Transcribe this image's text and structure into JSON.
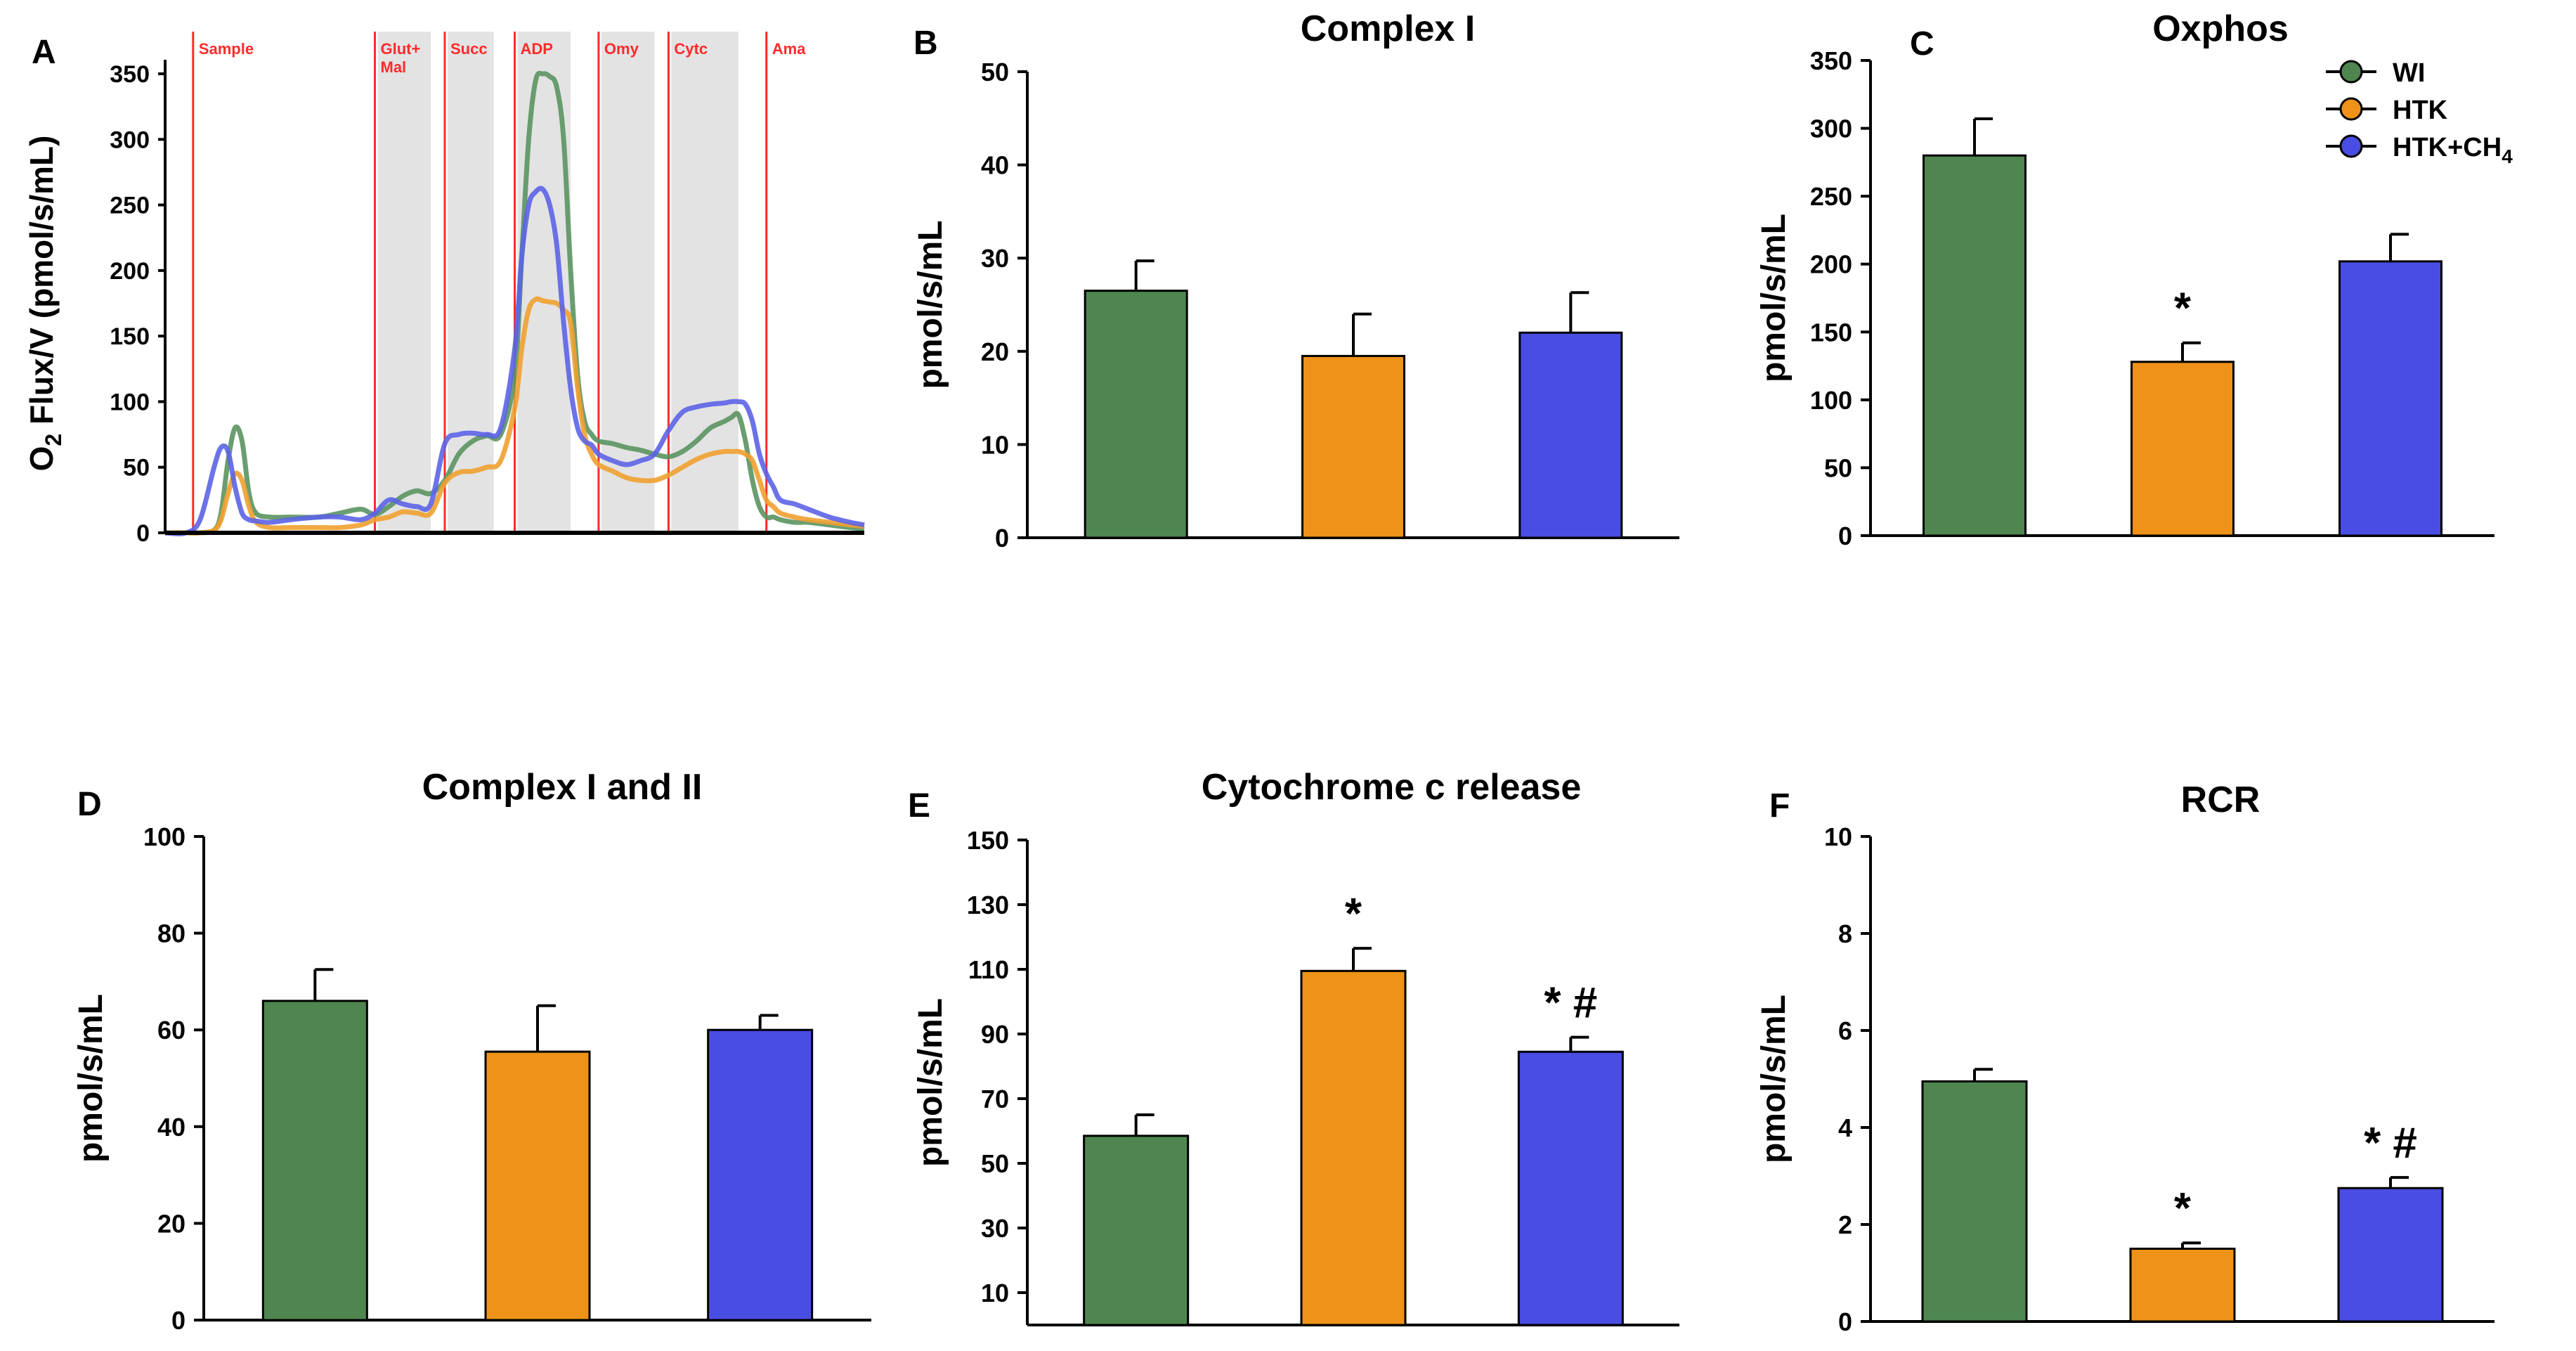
{
  "colors": {
    "wi": "#4f8650",
    "htk": "#ee9219",
    "htk_ch4": "#4a4de3",
    "axis": "#000000",
    "marker": "#ff2b2b",
    "shade": "#e3e3e3",
    "trace_green": "#5a9460",
    "trace_orange": "#f0a030",
    "trace_blue": "#5c63e6"
  },
  "legend": {
    "items": [
      "WI",
      "HTK",
      "HTK+CH4"
    ],
    "ch4_base": "HTK+CH",
    "ch4_sub": "4"
  },
  "chart_data": [
    {
      "id": "A",
      "type": "line",
      "letter": "A",
      "ylabel_prefix": "O",
      "ylabel_sub": "2",
      "ylabel_rest": " Flux/V (pmol/s/mL)",
      "ylim": [
        0,
        350
      ],
      "yticks": [
        0,
        50,
        100,
        150,
        200,
        250,
        300,
        350
      ],
      "xlim": [
        0,
        100
      ],
      "events": [
        {
          "label": "Sample",
          "x": 4,
          "shade_end": null
        },
        {
          "label": "Glut+",
          "label2": "Mal",
          "x": 30,
          "shade_end": 38
        },
        {
          "label": "Succ",
          "x": 40,
          "shade_end": 47
        },
        {
          "label": "ADP",
          "x": 50,
          "shade_end": 58
        },
        {
          "label": "Omy",
          "x": 62,
          "shade_end": 70
        },
        {
          "label": "Cytc",
          "x": 72,
          "shade_end": 82
        },
        {
          "label": "Ama",
          "x": 86,
          "shade_end": null
        }
      ],
      "series": [
        {
          "name": "WI",
          "color_key": "trace_green",
          "x": [
            0,
            3,
            5,
            7,
            8,
            9,
            10,
            11,
            12,
            13,
            15,
            18,
            22,
            25,
            28,
            30,
            32,
            34,
            36,
            38,
            40,
            42,
            44,
            46,
            48,
            50,
            51,
            52,
            53,
            54,
            55,
            56,
            57,
            58,
            59,
            60,
            61,
            62,
            64,
            66,
            68,
            70,
            72,
            74,
            76,
            78,
            80,
            81,
            82,
            83,
            84,
            85,
            86,
            87,
            88,
            90,
            92,
            95,
            98,
            100
          ],
          "y": [
            0,
            0,
            0,
            2,
            15,
            55,
            80,
            70,
            30,
            15,
            12,
            12,
            12,
            15,
            18,
            14,
            20,
            28,
            32,
            30,
            40,
            60,
            70,
            74,
            75,
            120,
            210,
            300,
            345,
            350,
            348,
            340,
            300,
            200,
            120,
            85,
            75,
            70,
            68,
            65,
            63,
            60,
            58,
            62,
            70,
            80,
            85,
            88,
            90,
            70,
            40,
            20,
            12,
            12,
            10,
            8,
            8,
            6,
            4,
            3
          ]
        },
        {
          "name": "HTK",
          "color_key": "trace_orange",
          "x": [
            0,
            3,
            5,
            7,
            8,
            9,
            10,
            11,
            12,
            13,
            15,
            18,
            22,
            25,
            28,
            30,
            32,
            34,
            36,
            38,
            40,
            42,
            44,
            46,
            48,
            50,
            51,
            52,
            53,
            54,
            55,
            56,
            57,
            58,
            59,
            60,
            61,
            62,
            64,
            66,
            68,
            70,
            72,
            74,
            76,
            78,
            80,
            81,
            82,
            83,
            84,
            85,
            86,
            87,
            88,
            90,
            92,
            95,
            98,
            100
          ],
          "y": [
            0,
            0,
            0,
            2,
            10,
            30,
            45,
            40,
            20,
            8,
            4,
            4,
            4,
            4,
            6,
            10,
            12,
            16,
            15,
            15,
            38,
            46,
            47,
            50,
            55,
            95,
            140,
            170,
            178,
            177,
            176,
            175,
            170,
            160,
            110,
            75,
            60,
            52,
            47,
            42,
            40,
            40,
            44,
            50,
            56,
            60,
            62,
            62,
            62,
            60,
            55,
            40,
            25,
            20,
            15,
            12,
            10,
            8,
            6,
            5
          ]
        },
        {
          "name": "HTK+CH4",
          "color_key": "trace_blue",
          "x": [
            0,
            3,
            5,
            7,
            8,
            9,
            10,
            11,
            12,
            13,
            15,
            18,
            22,
            25,
            28,
            30,
            32,
            34,
            36,
            38,
            40,
            42,
            44,
            46,
            48,
            50,
            51,
            52,
            53,
            54,
            55,
            56,
            57,
            58,
            59,
            60,
            61,
            62,
            64,
            66,
            68,
            70,
            72,
            74,
            76,
            78,
            80,
            81,
            82,
            83,
            84,
            85,
            86,
            87,
            88,
            90,
            92,
            95,
            98,
            100
          ],
          "y": [
            0,
            0,
            10,
            50,
            65,
            62,
            35,
            15,
            10,
            9,
            8,
            10,
            12,
            12,
            10,
            15,
            25,
            22,
            20,
            22,
            68,
            75,
            76,
            75,
            80,
            140,
            210,
            250,
            260,
            262,
            250,
            220,
            160,
            110,
            80,
            70,
            67,
            60,
            55,
            52,
            55,
            60,
            78,
            92,
            96,
            98,
            99,
            100,
            100,
            98,
            85,
            60,
            45,
            35,
            25,
            22,
            18,
            12,
            8,
            6
          ]
        }
      ]
    },
    {
      "id": "B",
      "type": "bar",
      "letter": "B",
      "title": "Complex I",
      "ylabel": "pmol/s/mL",
      "ylim": [
        0,
        50
      ],
      "yticks": [
        0,
        10,
        20,
        30,
        40,
        50
      ],
      "categories": [
        "WI",
        "HTK",
        "HTK+CH4"
      ],
      "values": [
        26.5,
        19.5,
        22
      ],
      "errors": [
        3.2,
        4.5,
        4.3
      ],
      "annotations": [
        "",
        "",
        ""
      ]
    },
    {
      "id": "C",
      "type": "bar",
      "letter": "C",
      "title": "Oxphos",
      "ylabel": "pmol/s/mL",
      "ylim": [
        0,
        350
      ],
      "yticks": [
        0,
        50,
        100,
        150,
        200,
        250,
        300,
        350
      ],
      "categories": [
        "WI",
        "HTK",
        "HTK+CH4"
      ],
      "values": [
        280,
        128,
        202
      ],
      "errors": [
        27,
        14,
        20
      ],
      "annotations": [
        "",
        "*",
        ""
      ],
      "legend": true
    },
    {
      "id": "D",
      "type": "bar",
      "letter": "D",
      "title": "Complex I and II",
      "ylabel": "pmol/s/mL",
      "ylim": [
        0,
        100
      ],
      "yticks": [
        0,
        20,
        40,
        60,
        80,
        100
      ],
      "categories": [
        "WI",
        "HTK",
        "HTK+CH4"
      ],
      "values": [
        66,
        55.5,
        60
      ],
      "errors": [
        6.5,
        9.5,
        3
      ],
      "annotations": [
        "",
        "",
        ""
      ]
    },
    {
      "id": "E",
      "type": "bar",
      "letter": "E",
      "title": "Cytochrome c release",
      "ylabel": "pmol/s/mL",
      "ylim": [
        0,
        150
      ],
      "yticks": [
        10,
        30,
        50,
        70,
        90,
        110,
        130,
        150
      ],
      "ybase": 0,
      "categories": [
        "WI",
        "HTK",
        "HTK+CH4"
      ],
      "values": [
        58.5,
        109.5,
        84.5
      ],
      "errors": [
        6.5,
        7,
        4.5
      ],
      "annotations": [
        "",
        "*",
        "*#"
      ]
    },
    {
      "id": "F",
      "type": "bar",
      "letter": "F",
      "title": "RCR",
      "ylabel": "pmol/s/mL",
      "ylim": [
        0,
        10
      ],
      "yticks": [
        0,
        2,
        4,
        6,
        8,
        10
      ],
      "categories": [
        "WI",
        "HTK",
        "HTK+CH4"
      ],
      "values": [
        4.95,
        1.5,
        2.75
      ],
      "errors": [
        0.25,
        0.12,
        0.22
      ],
      "annotations": [
        "",
        "*",
        "*#"
      ]
    }
  ]
}
